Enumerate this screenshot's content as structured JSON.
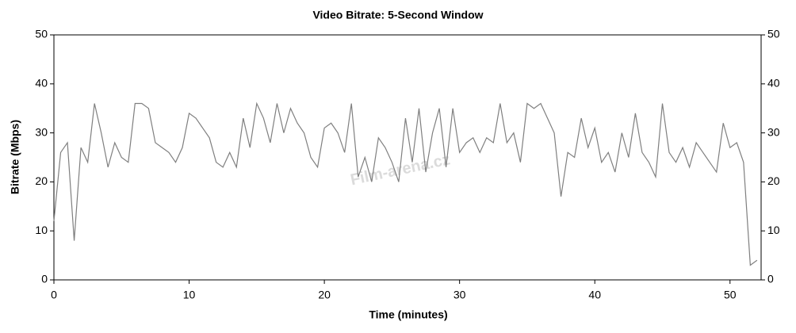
{
  "chart_data": {
    "type": "line",
    "title": "Video Bitrate: 5-Second Window",
    "x_label": "Time (minutes)",
    "y_label": "Bitrate (Mbps)",
    "watermark": "Film-arena.cz",
    "x": [
      0,
      0.5,
      1,
      1.5,
      2,
      2.5,
      3,
      3.5,
      4,
      4.5,
      5,
      5.5,
      6,
      6.5,
      7,
      7.5,
      8,
      8.5,
      9,
      9.5,
      10,
      10.5,
      11,
      11.5,
      12,
      12.5,
      13,
      13.5,
      14,
      14.5,
      15,
      15.5,
      16,
      16.5,
      17,
      17.5,
      18,
      18.5,
      19,
      19.5,
      20,
      20.5,
      21,
      21.5,
      22,
      22.5,
      23,
      23.5,
      24,
      24.5,
      25,
      25.5,
      26,
      26.5,
      27,
      27.5,
      28,
      28.5,
      29,
      29.5,
      30,
      30.5,
      31,
      31.5,
      32,
      32.5,
      33,
      33.5,
      34,
      34.5,
      35,
      35.5,
      36,
      36.5,
      37,
      37.5,
      38,
      38.5,
      39,
      39.5,
      40,
      40.5,
      41,
      41.5,
      42,
      42.5,
      43,
      43.5,
      44,
      44.5,
      45,
      45.5,
      46,
      46.5,
      47,
      47.5,
      48,
      48.5,
      49,
      49.5,
      50,
      50.5,
      51,
      51.5,
      52
    ],
    "series": [
      {
        "name": "Bitrate",
        "color": "#7f7f7f",
        "values": [
          12,
          26,
          28,
          8,
          27,
          24,
          36,
          30,
          23,
          28,
          25,
          24,
          36,
          36,
          35,
          28,
          27,
          26,
          24,
          27,
          34,
          33,
          31,
          29,
          24,
          23,
          26,
          23,
          33,
          27,
          36,
          33,
          28,
          36,
          30,
          35,
          32,
          30,
          25,
          23,
          31,
          32,
          30,
          26,
          36,
          21,
          25,
          20,
          29,
          27,
          24,
          20,
          33,
          24,
          35,
          22,
          30,
          35,
          23,
          35,
          26,
          28,
          29,
          26,
          29,
          28,
          36,
          28,
          30,
          24,
          36,
          35,
          36,
          33,
          30,
          17,
          26,
          25,
          33,
          27,
          31,
          24,
          26,
          22,
          30,
          25,
          34,
          26,
          24,
          21,
          36,
          26,
          24,
          27,
          23,
          28,
          26,
          24,
          22,
          32,
          27,
          28,
          24,
          3,
          4
        ]
      }
    ],
    "xlim": [
      0,
      52.3
    ],
    "ylim": [
      0,
      50
    ],
    "xticks": [
      0,
      10,
      20,
      30,
      40,
      50
    ],
    "yticks": [
      0,
      10,
      20,
      30,
      40,
      50
    ]
  }
}
